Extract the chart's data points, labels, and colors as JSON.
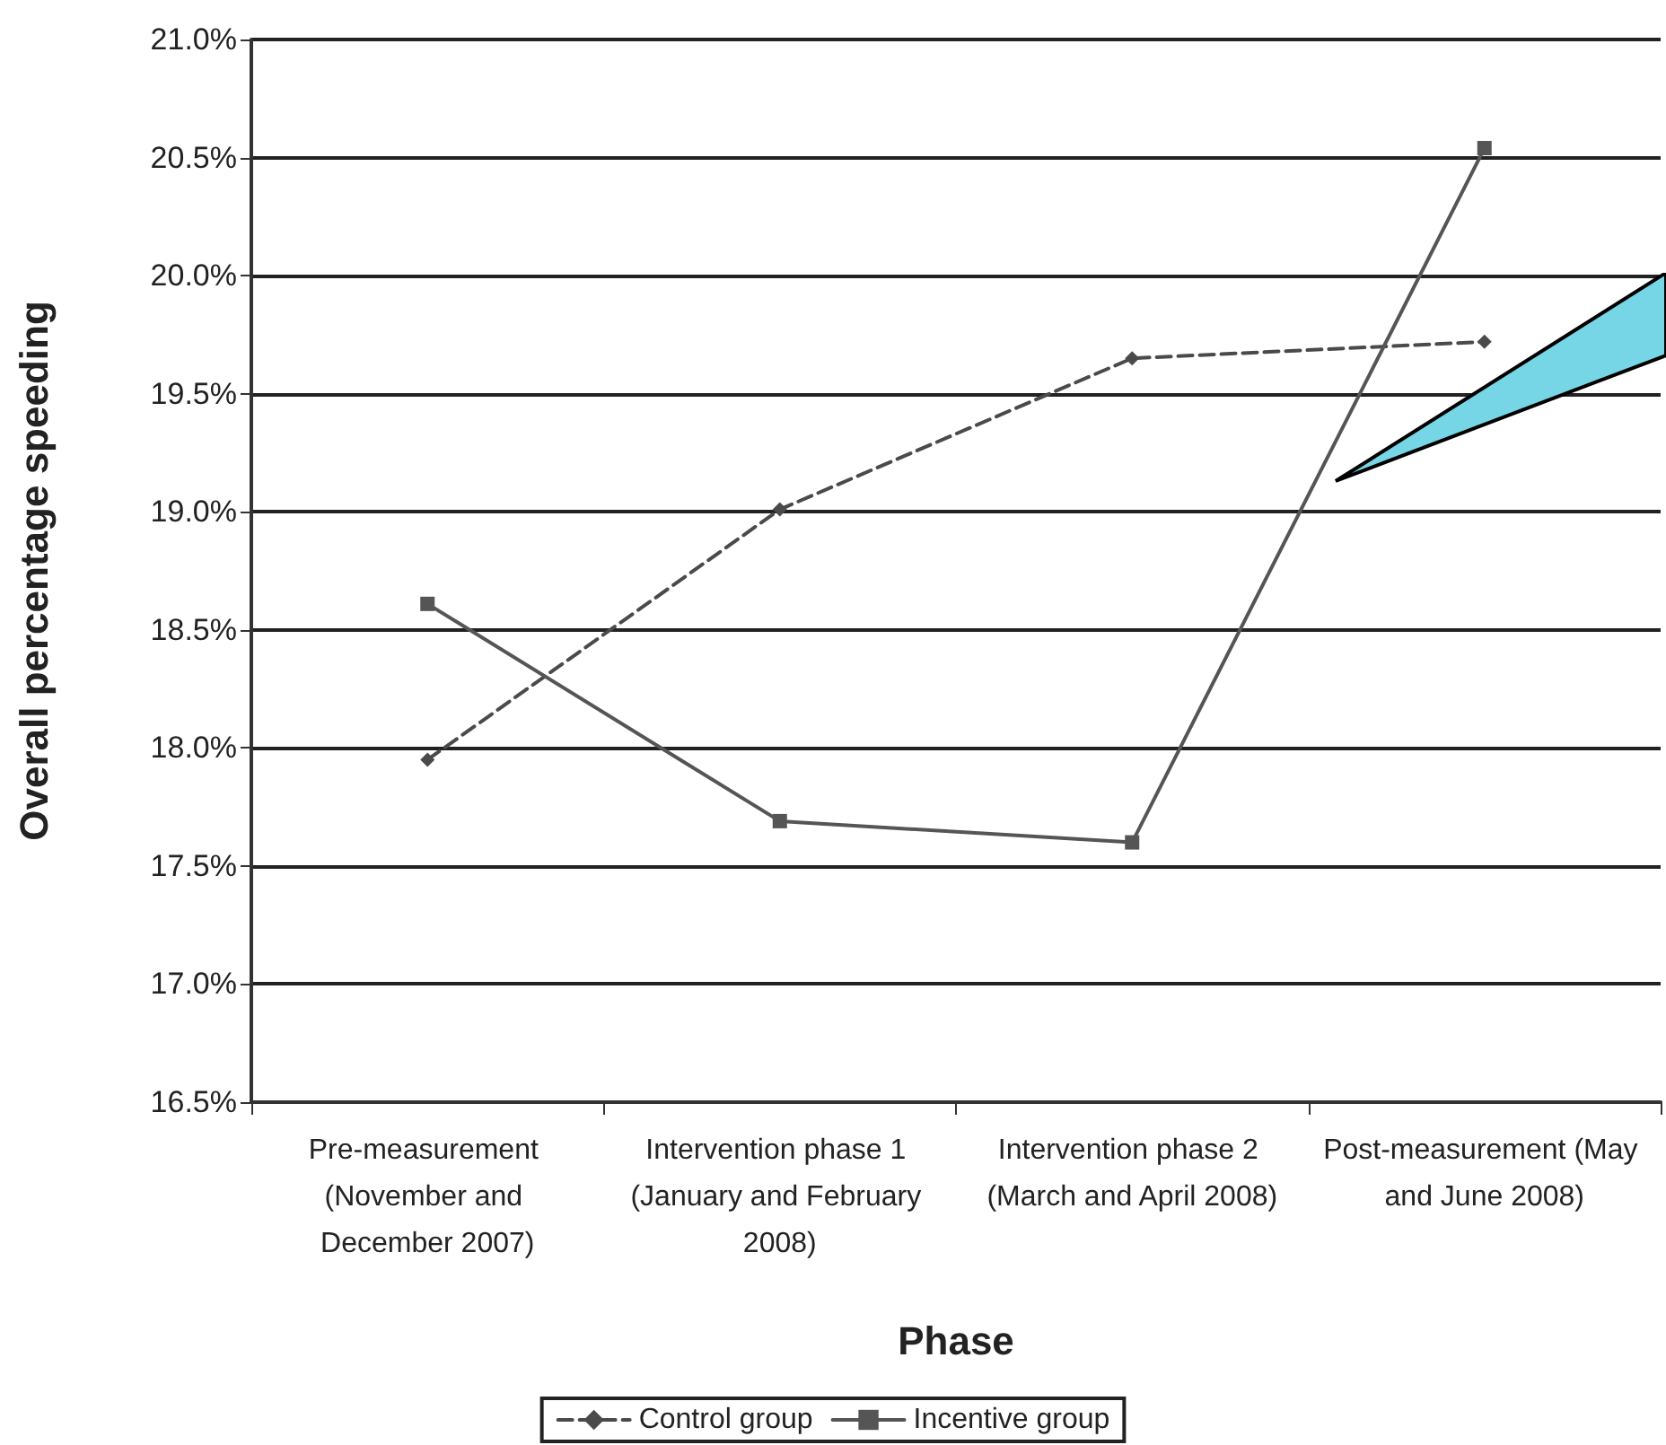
{
  "chart_data": {
    "type": "line",
    "xlabel": "Phase",
    "ylabel": "Overall percentage speeding",
    "categories": [
      "Pre-measurement (November and December 2007)",
      "Intervention phase 1 (January and February 2008)",
      "Intervention phase 2 (March and April 2008)",
      "Post-measurement (May and June 2008)"
    ],
    "series": [
      {
        "name": "Control group",
        "color": "#4a4a4a",
        "marker": "diamond",
        "line_style": "dashed",
        "values": [
          17.95,
          19.01,
          19.65,
          19.72
        ]
      },
      {
        "name": "Incentive group",
        "color": "#555555",
        "marker": "square",
        "line_style": "solid",
        "values": [
          18.61,
          17.69,
          17.6,
          20.54
        ]
      }
    ],
    "ylim": [
      16.5,
      21.0
    ],
    "yticks": [
      {
        "value": 16.5,
        "label": "16.5%"
      },
      {
        "value": 17.0,
        "label": "17.0%"
      },
      {
        "value": 17.5,
        "label": "17.5%"
      },
      {
        "value": 18.0,
        "label": "18.0%"
      },
      {
        "value": 18.5,
        "label": "18.5%"
      },
      {
        "value": 19.0,
        "label": "19.0%"
      },
      {
        "value": 19.5,
        "label": "19.5%"
      },
      {
        "value": 20.0,
        "label": "20.0%"
      },
      {
        "value": 20.5,
        "label": "20.5%"
      },
      {
        "value": 21.0,
        "label": "21.0%"
      }
    ],
    "grid": "y",
    "legend": "bottom"
  }
}
